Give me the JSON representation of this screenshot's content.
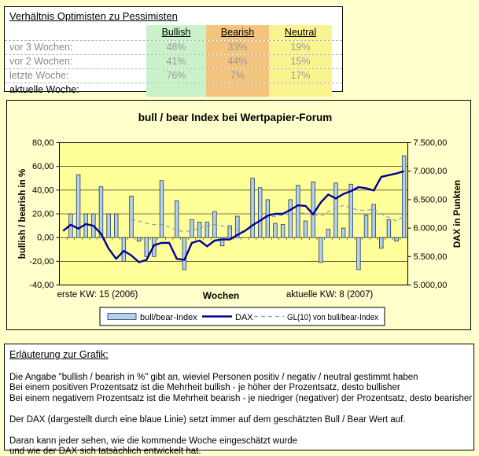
{
  "page": {
    "bg_color": "#FFFFCC"
  },
  "ratio_table": {
    "title": "Verhältnis Optimisten zu Pessimisten",
    "columns": [
      {
        "label": "Bullish",
        "color": "#C9F2C9"
      },
      {
        "label": "Bearish",
        "color": "#F2C47E"
      },
      {
        "label": "Neutral",
        "color": "#FAF48F"
      }
    ],
    "rows": [
      {
        "label": "vor 3 Wochen:",
        "values": [
          "48%",
          "33%",
          "19%"
        ]
      },
      {
        "label": "vor 2 Wochen:",
        "values": [
          "41%",
          "44%",
          "15%"
        ]
      },
      {
        "label": "letzte Woche:",
        "values": [
          "76%",
          "7%",
          "17%"
        ]
      },
      {
        "label": "aktuelle Woche:",
        "values": [
          "",
          "",
          ""
        ]
      }
    ]
  },
  "chart_data": {
    "type": "bar+line",
    "title": "bull / bear Index bei Wertpapier-Forum",
    "xlabel": "Wochen",
    "x_left_note": "erste KW: 15 (2006)",
    "x_right_note": "aktuelle KW: 8 (2007)",
    "ylabel_left": "bullish / bearish in %",
    "ylabel_right": "DAX in Punkten",
    "y_left": {
      "min": -40,
      "max": 80,
      "ticks": [
        "80,00",
        "60,00",
        "40,00",
        "20,00",
        "0,00",
        "-20,00",
        "-40,00"
      ]
    },
    "y_right": {
      "min": 5000,
      "max": 7500,
      "ticks": [
        "7.500,00",
        "7.000,00",
        "6.500,00",
        "6.000,00",
        "5.500,00",
        "5.000,00"
      ]
    },
    "grid": true,
    "legend": [
      {
        "label": "bull/bear-Index",
        "type": "bar"
      },
      {
        "label": "DAX",
        "type": "line"
      },
      {
        "label": "GL(10) von bull/bear-Index",
        "type": "dashed-line"
      }
    ],
    "series": {
      "bull_bear_index": [
        0,
        20,
        53,
        20,
        20,
        43,
        20,
        20,
        -20,
        35,
        -3,
        -16,
        -16,
        48,
        0,
        31,
        -27,
        15,
        13,
        13,
        22,
        -7,
        10,
        18,
        0,
        50,
        42,
        32,
        12,
        11,
        32,
        44,
        14,
        47,
        -21,
        7,
        46,
        8,
        45,
        -27,
        19,
        28,
        -9,
        15,
        -3,
        69
      ],
      "dax": [
        5950,
        6060,
        5990,
        6070,
        6040,
        5900,
        5640,
        5460,
        5600,
        5520,
        5400,
        5440,
        5700,
        5740,
        5740,
        5460,
        5440,
        5740,
        5780,
        5680,
        5780,
        5800,
        5800,
        5880,
        5950,
        6050,
        6130,
        6220,
        6250,
        6250,
        6320,
        6400,
        6390,
        6240,
        6450,
        6590,
        6520,
        6600,
        6650,
        6720,
        6700,
        6660,
        6900,
        6930,
        6960,
        7000
      ],
      "gl10": [
        null,
        null,
        null,
        null,
        null,
        null,
        null,
        null,
        null,
        15,
        14,
        12,
        11,
        11,
        9,
        6,
        5,
        6,
        8,
        10,
        11,
        10,
        8,
        6,
        5,
        10,
        14,
        17,
        18,
        19,
        20,
        20,
        21,
        19,
        18,
        22,
        25,
        27,
        25,
        23,
        23,
        24,
        20,
        17,
        14,
        18
      ]
    },
    "colors": {
      "plot_bg": "#FFFF99",
      "outer_bg": "#FFFFCC",
      "bar_fill": "#B3D1EA",
      "bar_stroke": "#24365E",
      "dax_line": "#000099",
      "gl10_line": "#8099CC",
      "gridline": "#000000"
    }
  },
  "explanation": {
    "title": "Erläuterung zur Grafik:",
    "lines": [
      "",
      "Die Angabe \"bullish / bearish in %\" gibt an, wieviel Personen positiv / negativ / neutral gestimmt haben",
      "Bei einem positiven Prozentsatz ist die Mehrheit bullish - je höher der Prozentsatz, desto bullisher",
      "Bei einem negativem Prozentsatz ist die Mehrheit bearish - je niedriger (negativer) der Prozentsatz, desto bearisher",
      "",
      "Der DAX (dargestellt durch eine blaue Linie) setzt immer auf dem geschätzten Bull / Bear Wert auf.",
      "",
      "Daran kann jeder sehen, wie die kommende Woche eingeschätzt wurde",
      "und wie der DAX sich tatsächlich entwickelt hat."
    ]
  }
}
